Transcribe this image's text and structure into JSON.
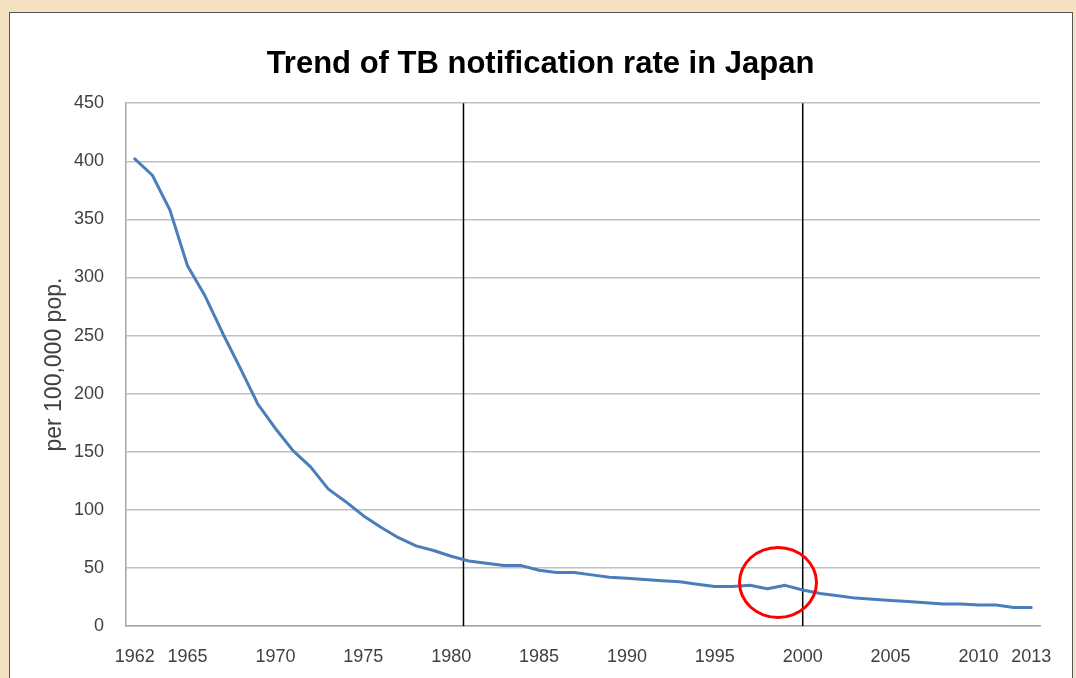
{
  "chart_data": {
    "type": "line",
    "title": "Trend of TB notification rate in Japan",
    "ylabel": "per 100,000 pop.",
    "x": [
      1962,
      1963,
      1964,
      1965,
      1966,
      1967,
      1968,
      1969,
      1970,
      1971,
      1972,
      1973,
      1974,
      1975,
      1976,
      1977,
      1978,
      1979,
      1980,
      1981,
      1982,
      1983,
      1984,
      1985,
      1986,
      1987,
      1988,
      1989,
      1990,
      1991,
      1992,
      1993,
      1994,
      1995,
      1996,
      1997,
      1998,
      1999,
      2000,
      2001,
      2002,
      2003,
      2004,
      2005,
      2006,
      2007,
      2008,
      2009,
      2010,
      2011,
      2012,
      2013
    ],
    "xlim": [
      1961.5,
      2013.5
    ],
    "xticks": [
      1962,
      1965,
      1970,
      1975,
      1980,
      1985,
      1990,
      1995,
      2000,
      2005,
      2010,
      2013
    ],
    "ylim": [
      0,
      450
    ],
    "yticks": [
      0,
      50,
      100,
      150,
      200,
      250,
      300,
      350,
      400,
      450
    ],
    "grid": "y",
    "legend": false,
    "marker": "none",
    "line_style": "solid",
    "series": [
      {
        "color": "#4a7ebb",
        "values": [
          402,
          388,
          358,
          310,
          284,
          252,
          222,
          191,
          170,
          151,
          137,
          118,
          107,
          95,
          85,
          76,
          69,
          65,
          60,
          56,
          54,
          52,
          52,
          48,
          46,
          46,
          44,
          42,
          41,
          40,
          39,
          38,
          36,
          34,
          34,
          35,
          32,
          35,
          31,
          28,
          26,
          24,
          23,
          22,
          21,
          20,
          19,
          19,
          18,
          18,
          16,
          16
        ]
      }
    ],
    "ref_lines": [
      {
        "axis": "x",
        "value": 1980.7,
        "color": "#000000"
      },
      {
        "axis": "x",
        "value": 2000,
        "color": "#000000"
      }
    ]
  }
}
